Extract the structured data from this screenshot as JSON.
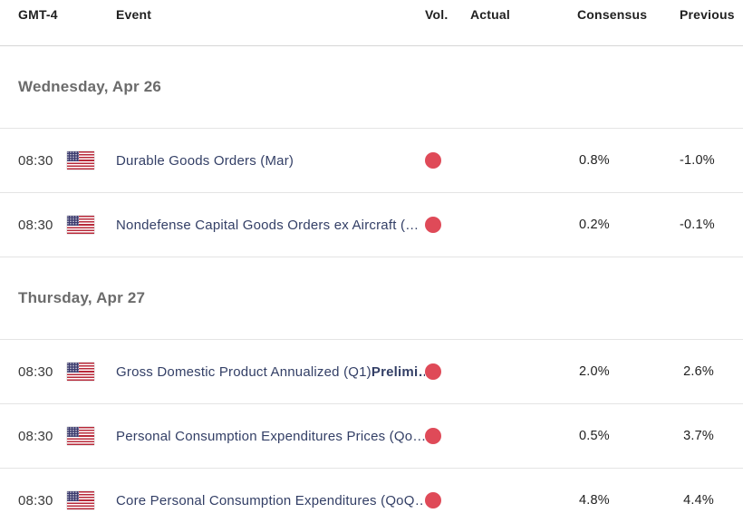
{
  "colors": {
    "volatility_high": "#df4a58",
    "event_link": "#333f66",
    "section_text": "#6b6b6b",
    "header_text": "#1f1f1f",
    "value_text": "#212121",
    "divider": "#e4e4e4"
  },
  "header": {
    "columns": {
      "time": "GMT-4",
      "event": "Event",
      "volatility": "Vol.",
      "actual": "Actual",
      "consensus": "Consensus",
      "previous": "Previous"
    }
  },
  "sections": [
    {
      "title": "Wednesday, Apr 26",
      "rows": [
        {
          "time": "08:30",
          "country": "United States",
          "event": "Durable Goods Orders (Mar)",
          "volatility": "high",
          "actual": "",
          "consensus": "0.8%",
          "previous": "-1.0%"
        },
        {
          "time": "08:30",
          "country": "United States",
          "event": "Nondefense Capital Goods Orders ex Aircraft (…",
          "volatility": "high",
          "actual": "",
          "consensus": "0.2%",
          "previous": "-0.1%"
        }
      ]
    },
    {
      "title": "Thursday, Apr 27",
      "rows": [
        {
          "time": "08:30",
          "country": "United States",
          "event": "Gross Domestic Product Annualized (Q1)",
          "event_bold": "Prelimi…",
          "volatility": "high",
          "actual": "",
          "consensus": "2.0%",
          "previous": "2.6%"
        },
        {
          "time": "08:30",
          "country": "United States",
          "event": "Personal Consumption Expenditures Prices (Qo…",
          "volatility": "high",
          "actual": "",
          "consensus": "0.5%",
          "previous": "3.7%"
        },
        {
          "time": "08:30",
          "country": "United States",
          "event": "Core Personal Consumption Expenditures (QoQ…",
          "volatility": "high",
          "actual": "",
          "consensus": "4.8%",
          "previous": "4.4%"
        }
      ]
    }
  ]
}
